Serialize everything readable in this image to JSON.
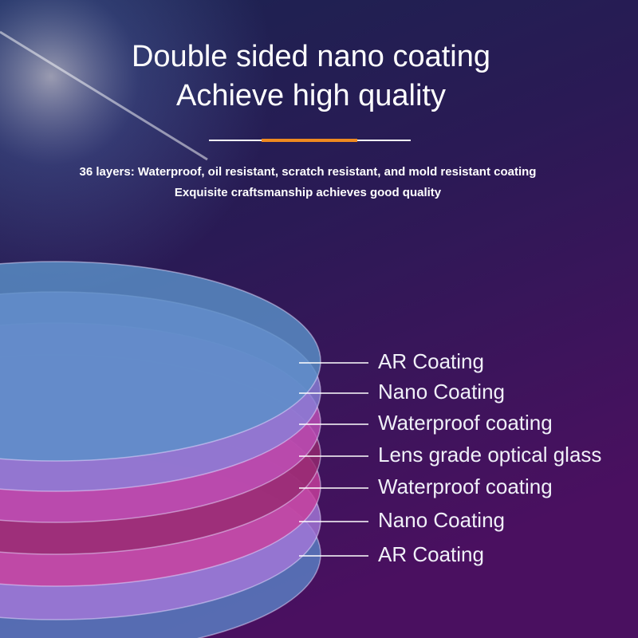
{
  "header": {
    "title_lines": [
      "Double sided nano coating",
      "Achieve high quality"
    ],
    "subtitle_lines": [
      "36 layers: Waterproof, oil resistant, scratch resistant, and mold resistant coating",
      "Exquisite craftsmanship achieves good quality"
    ]
  },
  "layers": [
    "AR Coating",
    "Nano Coating",
    "Waterproof coating",
    "Lens grade optical glass",
    "Waterproof coating",
    "Nano Coating",
    "AR Coating"
  ]
}
